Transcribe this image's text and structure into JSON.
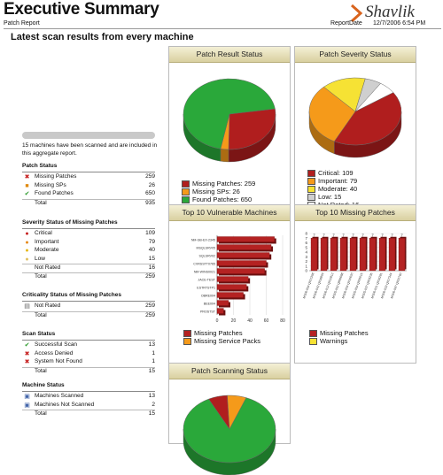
{
  "header": {
    "title": "Executive Summary",
    "logo": "Shavlik",
    "patch_report": "Patch Report",
    "report_date_label": "ReportDate",
    "report_date": "12/7/2006 6:54 PM",
    "subtitle": "Latest scan results from every machine"
  },
  "summary_text": "15 machines have been scanned and are included in this aggregate report.",
  "sections": [
    {
      "title": "Patch Status",
      "rows": [
        {
          "label": "Missing Patches",
          "value": "259",
          "icon": "x-icon"
        },
        {
          "label": "Missing SPs",
          "value": "26",
          "icon": "sp-icon"
        },
        {
          "label": "Found Patches",
          "value": "650",
          "icon": "check-icon"
        },
        {
          "label": "Total",
          "value": "935",
          "total": true
        }
      ]
    },
    {
      "title": "Severity Status of Missing Patches",
      "rows": [
        {
          "label": "Critical",
          "value": "109",
          "icon": "critical-icon"
        },
        {
          "label": "Important",
          "value": "79",
          "icon": "important-icon"
        },
        {
          "label": "Moderate",
          "value": "40",
          "icon": "moderate-icon"
        },
        {
          "label": "Low",
          "value": "15",
          "icon": "low-icon"
        },
        {
          "label": "Not Rated",
          "value": "16",
          "total": true
        },
        {
          "label": "Total",
          "value": "259",
          "total": true
        }
      ]
    },
    {
      "title": "Criticality Status of Missing Patches",
      "rows": [
        {
          "label": "Not Rated",
          "value": "259",
          "icon": "flag-icon"
        },
        {
          "label": "Total",
          "value": "259",
          "total": true
        }
      ]
    },
    {
      "title": "Scan Status",
      "rows": [
        {
          "label": "Successful Scan",
          "value": "13",
          "icon": "check-icon"
        },
        {
          "label": "Access Denied",
          "value": "1",
          "icon": "x-icon"
        },
        {
          "label": "System Not Found",
          "value": "1",
          "icon": "x-icon"
        },
        {
          "label": "Total",
          "value": "15",
          "total": true
        }
      ]
    },
    {
      "title": "Machine Status",
      "rows": [
        {
          "label": "Machines Scanned",
          "value": "13",
          "icon": "computer-icon"
        },
        {
          "label": "Machines Not Scanned",
          "value": "2",
          "icon": "computer-icon"
        },
        {
          "label": "Total",
          "value": "15",
          "total": true
        }
      ]
    }
  ],
  "panels": {
    "patch_result": "Patch Result Status",
    "patch_severity": "Patch Severity Status",
    "top_machines": "Top 10 Vulnerable Machines",
    "top_missing": "Top 10 Missing Patches",
    "scanning": "Patch Scanning Status"
  },
  "colors": {
    "red": "#b01e1e",
    "orange": "#f59a1a",
    "green": "#2aa83a",
    "yellow": "#f6e234",
    "gray": "#cfcfcf",
    "white": "#ffffff"
  },
  "chart_data": [
    {
      "type": "pie",
      "series": [
        {
          "name": "Missing Patches",
          "value": 259,
          "color": "#b01e1e"
        },
        {
          "name": "Missing SPs",
          "value": 26,
          "color": "#f59a1a"
        },
        {
          "name": "Found Patches",
          "value": 650,
          "color": "#2aa83a"
        }
      ],
      "legend": [
        "Missing Patches: 259",
        "Missing SPs: 26",
        "Found Patches: 650"
      ]
    },
    {
      "type": "pie",
      "series": [
        {
          "name": "Critical",
          "value": 109,
          "color": "#b01e1e"
        },
        {
          "name": "Important",
          "value": 79,
          "color": "#f59a1a"
        },
        {
          "name": "Moderate",
          "value": 40,
          "color": "#f6e234"
        },
        {
          "name": "Low",
          "value": 15,
          "color": "#cfcfcf"
        },
        {
          "name": "Not Rated",
          "value": 16,
          "color": "#ffffff"
        }
      ],
      "legend": [
        "Critical: 109",
        "Important: 79",
        "Moderate: 40",
        "Low: 15",
        "Not Rated: 16"
      ]
    },
    {
      "type": "bar",
      "orientation": "horizontal",
      "categories": [
        "NM-GB-EX-2345",
        "MSQLSRV05",
        "SQLSRV02",
        "CVRSSTT0765",
        "NM-WINS0021",
        "JACE-TEST",
        "ESTRTSTP1",
        "OBRE004",
        "BEE004",
        "PROSTST"
      ],
      "values": [
        70,
        66,
        64,
        60,
        58,
        38,
        36,
        32,
        14,
        8
      ],
      "xlim": [
        0,
        80
      ],
      "xticks": [
        "0",
        "20",
        "40",
        "60",
        "80"
      ],
      "legend": [
        "Missing Patches",
        "Missing Service Packs"
      ]
    },
    {
      "type": "bar",
      "categories": [
        "MS06-054 Q921398",
        "MS06-042 Q918899",
        "MS06-013 Q912812",
        "MS05-052 Q896688",
        "MS06-004 Q910620",
        "MS05-054 Q905915",
        "MS05-037 Q903235",
        "MS06-021 Q916281",
        "MS06-023 Q917344",
        "MS06-067 Q922760"
      ],
      "values": [
        7,
        7,
        7,
        7,
        7,
        7,
        7,
        7,
        7,
        7
      ],
      "ylim": [
        0,
        8
      ],
      "yticks": [
        "0",
        "1",
        "2",
        "3",
        "4",
        "5",
        "6",
        "7",
        "8"
      ],
      "legend": [
        "Missing Patches",
        "Warnings"
      ]
    },
    {
      "type": "pie",
      "series": [
        {
          "name": "Successful Scan",
          "value": 13,
          "color": "#2aa83a"
        },
        {
          "name": "Access Denied",
          "value": 1,
          "color": "#b01e1e"
        },
        {
          "name": "System Not Found",
          "value": 1,
          "color": "#f59a1a"
        }
      ]
    }
  ]
}
